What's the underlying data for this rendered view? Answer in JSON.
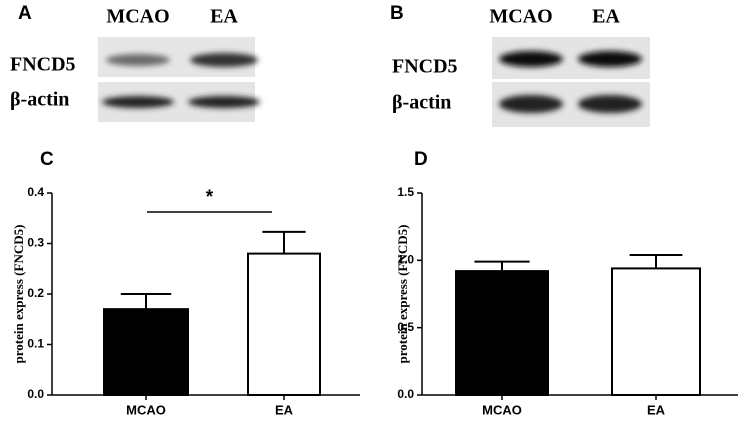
{
  "blots": [
    {
      "label": "A",
      "columns": [
        "MCAO",
        "EA"
      ],
      "rows": [
        "FNCD5",
        "β-actin"
      ]
    },
    {
      "label": "B",
      "columns": [
        "MCAO",
        "EA"
      ],
      "rows": [
        "FNCD5",
        "β-actin"
      ]
    }
  ],
  "chart_data": [
    {
      "type": "bar",
      "label": "C",
      "y_label": "protein  express (FNCD5)",
      "categories": [
        "MCAO",
        "EA"
      ],
      "values": [
        0.17,
        0.28
      ],
      "errors": [
        0.03,
        0.043
      ],
      "colors": [
        "#000000",
        "#ffffff"
      ],
      "significance": "*",
      "ylim": [
        0,
        0.4
      ],
      "yticks": [
        {
          "value": 0,
          "label": "0.0"
        },
        0.1,
        0.2,
        0.3,
        0.4
      ]
    },
    {
      "type": "bar",
      "label": "D",
      "y_label": "protein  express (FNCD5)",
      "categories": [
        "MCAO",
        "EA"
      ],
      "values": [
        0.92,
        0.94
      ],
      "errors": [
        0.07,
        0.1
      ],
      "colors": [
        "#000000",
        "#ffffff"
      ],
      "ylim": [
        0,
        1.5
      ],
      "yticks": [
        {
          "value": 0,
          "label": "0.0"
        },
        0.5,
        {
          "value": 1,
          "label": "1.0"
        },
        1.5
      ]
    }
  ]
}
